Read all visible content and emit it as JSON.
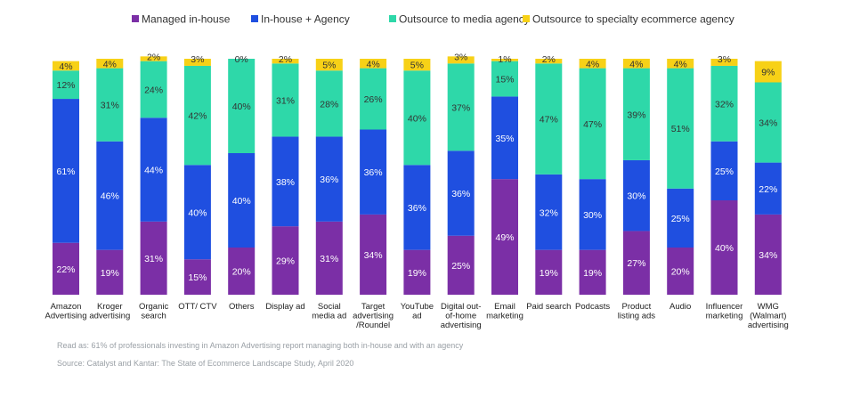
{
  "chart_data": {
    "type": "bar",
    "stacked": true,
    "legend_position": "top",
    "grid": false,
    "categories": [
      [
        "Amazon",
        "Advertising"
      ],
      [
        "Kroger",
        "advertising"
      ],
      [
        "Organic",
        "search"
      ],
      [
        "OTT/ CTV"
      ],
      [
        "Others"
      ],
      [
        "Display ad"
      ],
      [
        "Social",
        "media ad"
      ],
      [
        "Target",
        "advertising",
        "/Roundel"
      ],
      [
        "YouTube",
        "ad"
      ],
      [
        "Digital out-",
        "of-home",
        "advertising"
      ],
      [
        "Email",
        "marketing"
      ],
      [
        "Paid search"
      ],
      [
        "Podcasts"
      ],
      [
        "Product",
        "listing ads"
      ],
      [
        "Audio"
      ],
      [
        "Influencer",
        "marketing"
      ],
      [
        "WMG",
        "(Walmart)",
        "advertising"
      ]
    ],
    "series": [
      {
        "name": "Managed in-house",
        "color": "#7B2FA6",
        "label_color": "#ffffff",
        "values": [
          22,
          19,
          31,
          15,
          20,
          29,
          31,
          34,
          19,
          25,
          49,
          19,
          19,
          27,
          20,
          40,
          34
        ]
      },
      {
        "name": "In-house + Agency",
        "color": "#1F4FE0",
        "label_color": "#ffffff",
        "values": [
          61,
          46,
          44,
          40,
          40,
          38,
          36,
          36,
          36,
          36,
          35,
          32,
          30,
          30,
          25,
          25,
          22
        ]
      },
      {
        "name": "Outsource to media agency",
        "color": "#2ED8A9",
        "label_color": "#333333",
        "values": [
          12,
          31,
          24,
          42,
          40,
          31,
          28,
          26,
          40,
          37,
          15,
          47,
          47,
          39,
          51,
          32,
          34
        ]
      },
      {
        "name": "Outsource to specialty ecommerce agency",
        "color": "#F7D117",
        "label_color": "#333333",
        "values": [
          4,
          4,
          2,
          3,
          0,
          2,
          5,
          4,
          5,
          3,
          1,
          2,
          4,
          4,
          4,
          3,
          9
        ]
      }
    ],
    "ylim": [
      0,
      100
    ]
  },
  "footnotes": {
    "read_as": "Read as: 61% of professionals investing in Amazon Advertising report managing both in-house and with an agency",
    "source": "Source: Catalyst and Kantar: The State of Ecommerce Landscape Study, April 2020"
  }
}
